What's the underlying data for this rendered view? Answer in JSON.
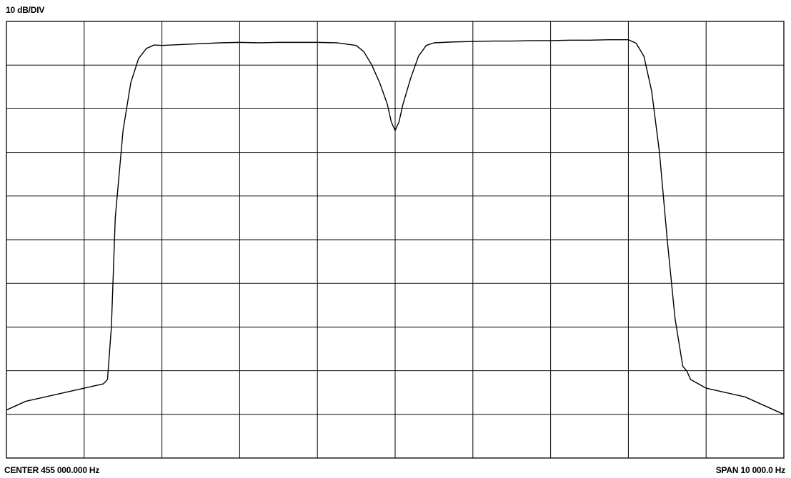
{
  "chart_data": {
    "type": "line",
    "scale_label": "10 dB/DIV",
    "center_label": "CENTER 455 000.000 Hz",
    "span_label": "SPAN 10 000.0 Hz",
    "center_hz": 455000,
    "span_hz": 10000,
    "db_per_div": 10,
    "x_divisions": 10,
    "y_divisions": 10,
    "grid": true,
    "xlim": [
      450000,
      460000
    ],
    "ylim": [
      -100,
      0
    ],
    "trace_color": "#000000",
    "grid_color": "#000000",
    "series": [
      {
        "x": [
          450000,
          450250,
          450500,
          450750,
          451000,
          451250,
          451300,
          451350,
          451400,
          451500,
          451600,
          451700,
          451800,
          451900,
          452000,
          452250,
          452500,
          452750,
          453000,
          453250,
          453500,
          453750,
          454000,
          454250,
          454500,
          454600,
          454700,
          454800,
          454900,
          454950,
          455000,
          455050,
          455100,
          455200,
          455300,
          455400,
          455500,
          455750,
          456000,
          456250,
          456500,
          456750,
          457000,
          457250,
          457500,
          457750,
          458000,
          458100,
          458200,
          458300,
          458400,
          458500,
          458600,
          458700,
          458750,
          458800,
          459000,
          459250,
          459500,
          459750,
          460000
        ],
        "y": [
          -89,
          -87,
          -86,
          -85,
          -84,
          -83,
          -82,
          -70,
          -45,
          -25,
          -14,
          -8.5,
          -6.2,
          -5.4,
          -5.5,
          -5.3,
          -5.1,
          -4.9,
          -4.8,
          -4.9,
          -4.8,
          -4.8,
          -4.8,
          -4.9,
          -5.5,
          -7,
          -10,
          -14,
          -19,
          -23,
          -25,
          -23,
          -19,
          -13,
          -8,
          -5.5,
          -4.9,
          -4.7,
          -4.6,
          -4.5,
          -4.5,
          -4.4,
          -4.4,
          -4.3,
          -4.3,
          -4.2,
          -4.2,
          -5,
          -8,
          -16,
          -30,
          -50,
          -68,
          -79,
          -80,
          -82,
          -84,
          -85,
          -86,
          -88,
          -90
        ]
      }
    ]
  }
}
